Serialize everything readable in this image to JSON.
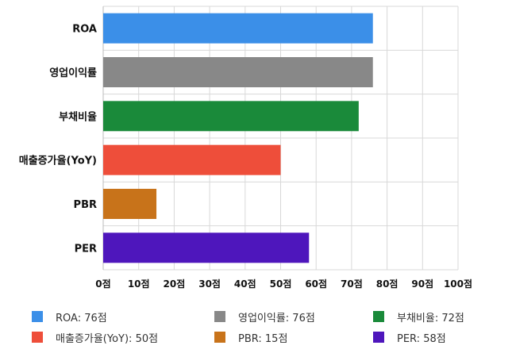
{
  "chart_data": {
    "type": "bar",
    "orientation": "horizontal",
    "categories": [
      "ROA",
      "영업이익률",
      "부채비율",
      "매출증가율(YoY)",
      "PBR",
      "PER"
    ],
    "values": [
      76,
      76,
      72,
      50,
      15,
      58
    ],
    "colors": [
      "#3b8fe8",
      "#888888",
      "#1a8a3a",
      "#ee4e3a",
      "#c8731a",
      "#4e16bc"
    ],
    "xlim": [
      0,
      100
    ],
    "x_ticks": [
      0,
      10,
      20,
      30,
      40,
      50,
      60,
      70,
      80,
      90,
      100
    ],
    "tick_suffix": "점",
    "grid": true,
    "legend_position": "bottom",
    "legend": [
      {
        "label": "ROA: 76점",
        "color": "#3b8fe8"
      },
      {
        "label": "영업이익률: 76점",
        "color": "#888888"
      },
      {
        "label": "부채비율: 72점",
        "color": "#1a8a3a"
      },
      {
        "label": "매출증가율(YoY): 50점",
        "color": "#ee4e3a"
      },
      {
        "label": "PBR: 15점",
        "color": "#c8731a"
      },
      {
        "label": "PER: 58점",
        "color": "#4e16bc"
      }
    ]
  }
}
